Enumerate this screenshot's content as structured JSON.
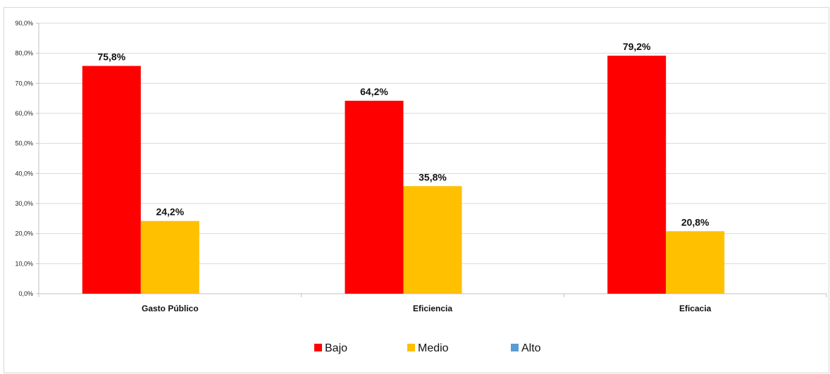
{
  "chart_data": {
    "type": "bar",
    "title": "",
    "xlabel": "",
    "ylabel": "",
    "categories": [
      "Gasto Público",
      "Eficiencia",
      "Eficacia"
    ],
    "series": [
      {
        "name": "Bajo",
        "color": "#ff0000",
        "values": [
          75.8,
          64.2,
          79.2
        ],
        "labels": [
          "75,8%",
          "64,2%",
          "79,2%"
        ]
      },
      {
        "name": "Medio",
        "color": "#ffc000",
        "values": [
          24.2,
          35.8,
          20.8
        ],
        "labels": [
          "24,2%",
          "35,8%",
          "20,8%"
        ]
      },
      {
        "name": "Alto",
        "color": "#5b9bd5",
        "values": [
          0,
          0,
          0
        ],
        "labels": [
          "",
          "",
          ""
        ]
      }
    ],
    "ylim": [
      0,
      90
    ],
    "yticks": [
      "0,0%",
      "10,0%",
      "20,0%",
      "30,0%",
      "40,0%",
      "50,0%",
      "60,0%",
      "70,0%",
      "80,0%",
      "90,0%"
    ],
    "grid": true,
    "legend_position": "bottom"
  }
}
